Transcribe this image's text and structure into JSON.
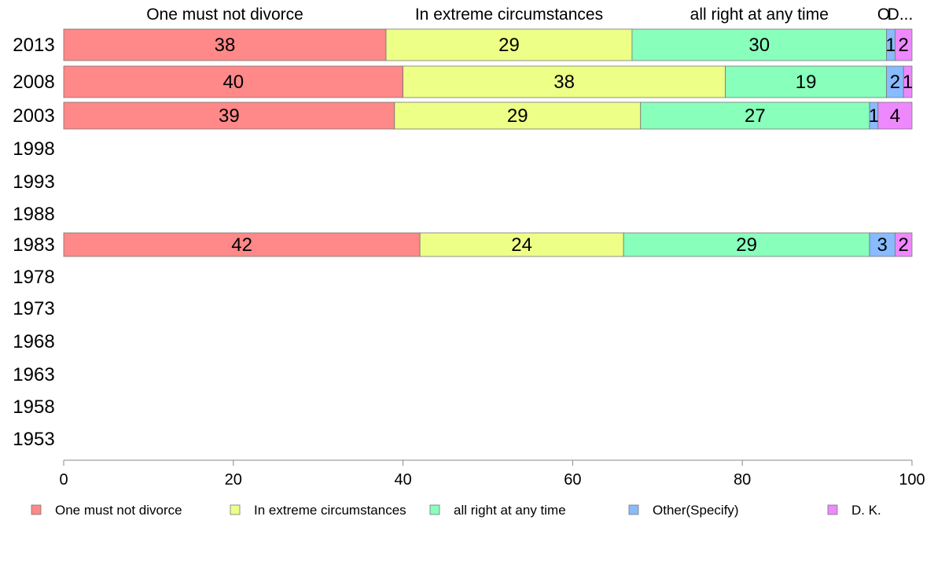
{
  "chart_data": {
    "type": "bar",
    "orientation": "horizontal",
    "stacked": true,
    "categories": [
      "2013",
      "2008",
      "2003",
      "1998",
      "1993",
      "1988",
      "1983",
      "1978",
      "1973",
      "1968",
      "1963",
      "1958",
      "1953"
    ],
    "series": [
      {
        "name": "One must not divorce",
        "values": [
          38,
          40,
          39,
          null,
          null,
          null,
          42,
          null,
          null,
          null,
          null,
          null,
          null
        ]
      },
      {
        "name": "In extreme circumstances",
        "values": [
          29,
          38,
          29,
          null,
          null,
          null,
          24,
          null,
          null,
          null,
          null,
          null,
          null
        ]
      },
      {
        "name": "all right at any time",
        "values": [
          30,
          19,
          27,
          null,
          null,
          null,
          29,
          null,
          null,
          null,
          null,
          null,
          null
        ]
      },
      {
        "name": "Other(Specify)",
        "values": [
          1,
          2,
          1,
          null,
          null,
          null,
          3,
          null,
          null,
          null,
          null,
          null,
          null
        ]
      },
      {
        "name": "D. K.",
        "values": [
          2,
          1,
          4,
          null,
          null,
          null,
          2,
          null,
          null,
          null,
          null,
          null,
          null
        ]
      }
    ],
    "top_labels": [
      "One must not divorce",
      "In extreme circumstances",
      "all right at any time",
      "O",
      "D..."
    ],
    "xlim": [
      0,
      100
    ],
    "xticks": [
      0,
      20,
      40,
      60,
      80,
      100
    ],
    "colors": [
      "#ff8888",
      "#eeff88",
      "#88ffbb",
      "#88bbff",
      "#ee88ff"
    ],
    "legend_position": "bottom",
    "grid": false
  }
}
